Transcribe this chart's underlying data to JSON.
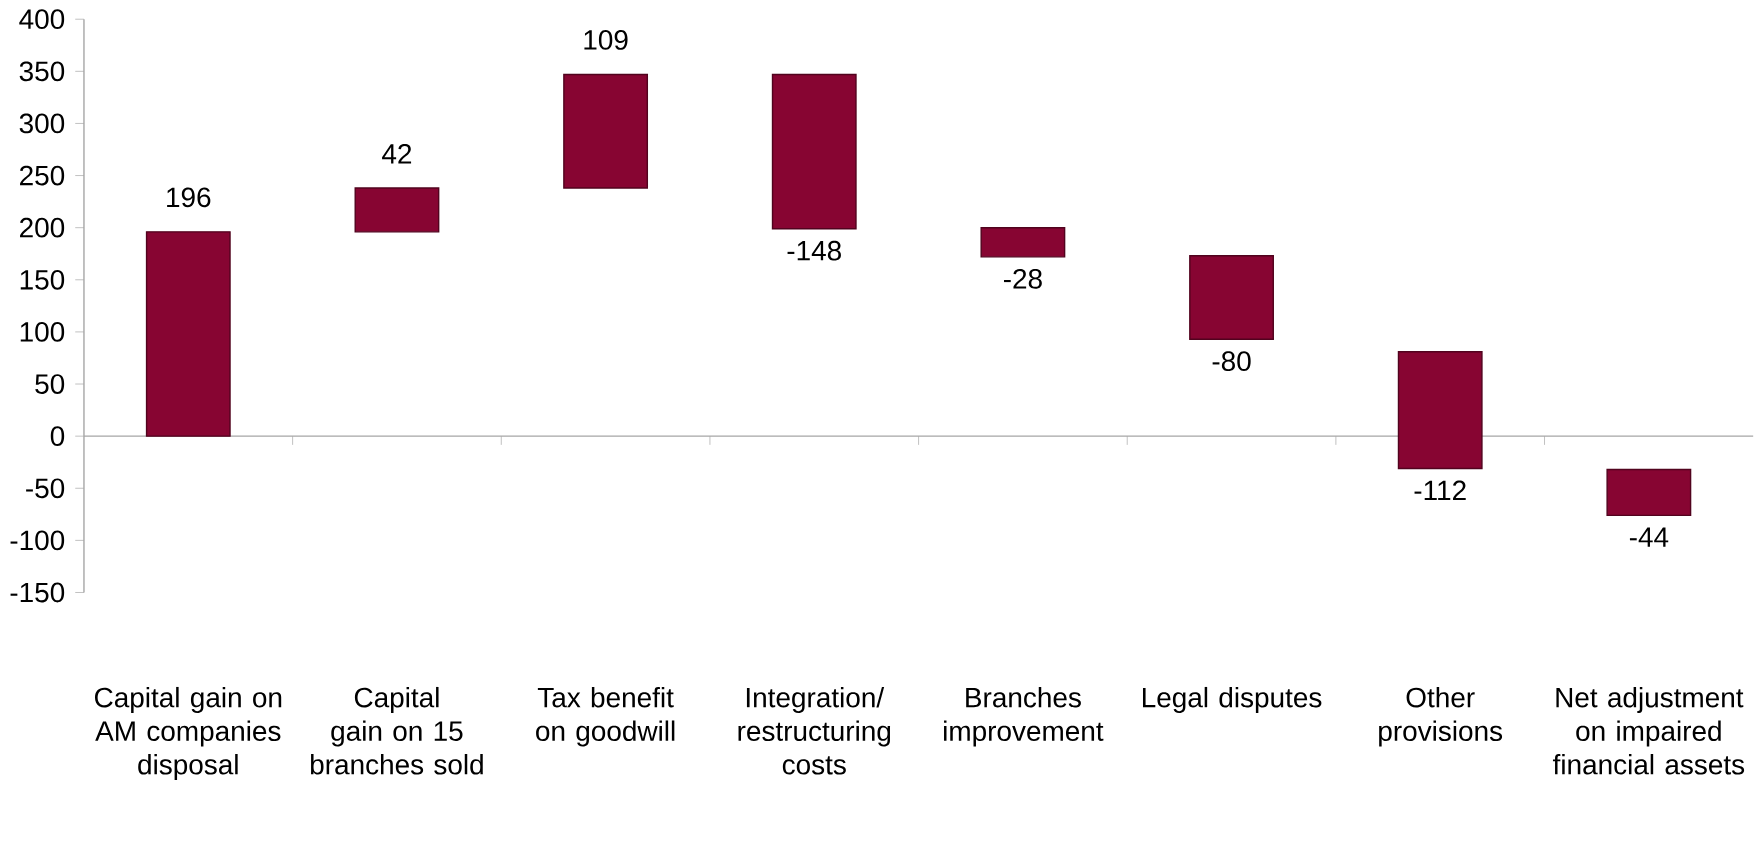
{
  "chart_data": {
    "type": "bar",
    "categories": [
      "Capital gain on AM companies disposal",
      "Capital gain on 15 branches sold",
      "Tax benefit on goodwill",
      "Integration/ restructuring costs",
      "Branches improvement",
      "Legal disputes",
      "Other provisions",
      "Net adjustment on impaired financial assets"
    ],
    "values": [
      196,
      42,
      109,
      -148,
      -28,
      -80,
      -112,
      -44
    ],
    "base": [
      0,
      196,
      238,
      347,
      200,
      173,
      81,
      -32
    ],
    "color": "#870532",
    "ylim": [
      -150,
      400
    ],
    "yticks": [
      -150,
      -100,
      -50,
      0,
      50,
      100,
      150,
      200,
      250,
      300,
      350,
      400
    ],
    "data_labels": true
  }
}
